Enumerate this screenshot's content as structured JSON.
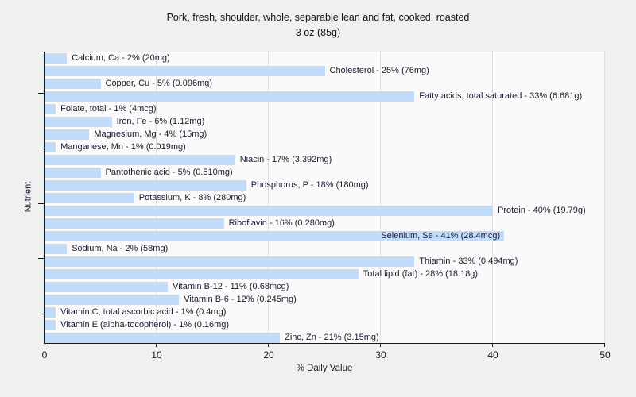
{
  "chart_data": {
    "type": "bar",
    "orientation": "horizontal",
    "title": "Pork, fresh, shoulder, whole, separable lean and fat, cooked, roasted",
    "subtitle": "3 oz (85g)",
    "xlabel": "% Daily Value",
    "ylabel": "Nutrient",
    "xlim": [
      0,
      50
    ],
    "xticks": [
      0,
      10,
      20,
      30,
      40,
      50
    ],
    "grid": "vertical gridlines at major x ticks",
    "legend": "none",
    "colors": {
      "bar_fill": "#c3dcfa",
      "plot_background": "#fafafa",
      "page_background": "#f0f0f0",
      "gridline": "#dddddd",
      "axis": "#1a1a1a",
      "label_text": "#1b1b2f"
    },
    "bars": [
      {
        "nutrient": "Calcium, Ca",
        "percent_dv": 2,
        "amount": "20mg",
        "label": "Calcium, Ca - 2% (20mg)"
      },
      {
        "nutrient": "Cholesterol",
        "percent_dv": 25,
        "amount": "76mg",
        "label": "Cholesterol - 25% (76mg)"
      },
      {
        "nutrient": "Copper, Cu",
        "percent_dv": 5,
        "amount": "0.096mg",
        "label": "Copper, Cu - 5% (0.096mg)"
      },
      {
        "nutrient": "Fatty acids, total saturated",
        "percent_dv": 33,
        "amount": "6.681g",
        "label": "Fatty acids, total saturated - 33% (6.681g)"
      },
      {
        "nutrient": "Folate, total",
        "percent_dv": 1,
        "amount": "4mcg",
        "label": "Folate, total - 1% (4mcg)"
      },
      {
        "nutrient": "Iron, Fe",
        "percent_dv": 6,
        "amount": "1.12mg",
        "label": "Iron, Fe - 6% (1.12mg)"
      },
      {
        "nutrient": "Magnesium, Mg",
        "percent_dv": 4,
        "amount": "15mg",
        "label": "Magnesium, Mg - 4% (15mg)"
      },
      {
        "nutrient": "Manganese, Mn",
        "percent_dv": 1,
        "amount": "0.019mg",
        "label": "Manganese, Mn - 1% (0.019mg)"
      },
      {
        "nutrient": "Niacin",
        "percent_dv": 17,
        "amount": "3.392mg",
        "label": "Niacin - 17% (3.392mg)"
      },
      {
        "nutrient": "Pantothenic acid",
        "percent_dv": 5,
        "amount": "0.510mg",
        "label": "Pantothenic acid - 5% (0.510mg)"
      },
      {
        "nutrient": "Phosphorus, P",
        "percent_dv": 18,
        "amount": "180mg",
        "label": "Phosphorus, P - 18% (180mg)"
      },
      {
        "nutrient": "Potassium, K",
        "percent_dv": 8,
        "amount": "280mg",
        "label": "Potassium, K - 8% (280mg)"
      },
      {
        "nutrient": "Protein",
        "percent_dv": 40,
        "amount": "19.79g",
        "label": "Protein - 40% (19.79g)"
      },
      {
        "nutrient": "Riboflavin",
        "percent_dv": 16,
        "amount": "0.280mg",
        "label": "Riboflavin - 16% (0.280mg)"
      },
      {
        "nutrient": "Selenium, Se",
        "percent_dv": 41,
        "amount": "28.4mcg",
        "label": "Selenium, Se - 41% (28.4mcg)"
      },
      {
        "nutrient": "Sodium, Na",
        "percent_dv": 2,
        "amount": "58mg",
        "label": "Sodium, Na - 2% (58mg)"
      },
      {
        "nutrient": "Thiamin",
        "percent_dv": 33,
        "amount": "0.494mg",
        "label": "Thiamin - 33% (0.494mg)"
      },
      {
        "nutrient": "Total lipid (fat)",
        "percent_dv": 28,
        "amount": "18.18g",
        "label": "Total lipid (fat) - 28% (18.18g)"
      },
      {
        "nutrient": "Vitamin B-12",
        "percent_dv": 11,
        "amount": "0.68mcg",
        "label": "Vitamin B-12 - 11% (0.68mcg)"
      },
      {
        "nutrient": "Vitamin B-6",
        "percent_dv": 12,
        "amount": "0.245mg",
        "label": "Vitamin B-6 - 12% (0.245mg)"
      },
      {
        "nutrient": "Vitamin C, total ascorbic acid",
        "percent_dv": 1,
        "amount": "0.4mg",
        "label": "Vitamin C, total ascorbic acid - 1% (0.4mg)"
      },
      {
        "nutrient": "Vitamin E (alpha-tocopherol)",
        "percent_dv": 1,
        "amount": "0.16mg",
        "label": "Vitamin E (alpha-tocopherol) - 1% (0.16mg)"
      },
      {
        "nutrient": "Zinc, Zn",
        "percent_dv": 21,
        "amount": "3.15mg",
        "label": "Zinc, Zn - 21% (3.15mg)"
      }
    ]
  }
}
